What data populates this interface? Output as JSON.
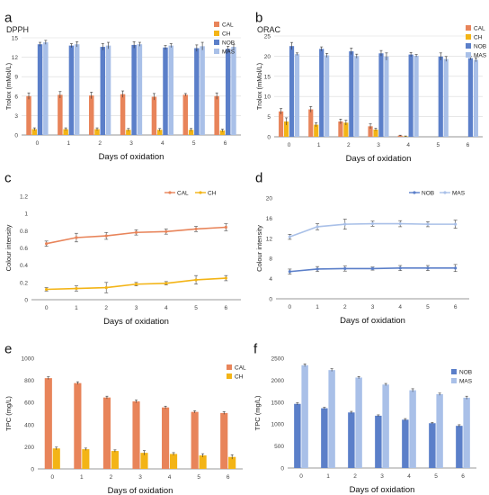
{
  "colors": {
    "CAL": "#e8845a",
    "CH": "#f3b416",
    "NOB": "#5b7fc9",
    "MAS": "#a9c0e8",
    "axis": "#444444",
    "grid": "#d9d9d9"
  },
  "chart_data": [
    {
      "panel": "a",
      "type": "bar",
      "title": "DPPH",
      "xlabel": "Days of oxidation",
      "ylabel": "Trolox (mMol/L)",
      "categories": [
        "0",
        "1",
        "2",
        "3",
        "4",
        "5",
        "6"
      ],
      "yticks": [
        "0",
        "3",
        "6",
        "9",
        "12",
        "15"
      ],
      "ylim": [
        0,
        15
      ],
      "grid": true,
      "legend": "right",
      "series": [
        {
          "name": "CAL",
          "values": [
            6.0,
            6.2,
            6.1,
            6.3,
            5.9,
            6.2,
            6.0
          ],
          "errors": [
            0.5,
            0.5,
            0.5,
            0.5,
            0.5,
            0.2,
            0.5
          ]
        },
        {
          "name": "CH",
          "values": [
            0.9,
            0.9,
            0.9,
            0.8,
            0.8,
            0.8,
            0.7
          ],
          "errors": [
            0.2,
            0.2,
            0.2,
            0.2,
            0.2,
            0.2,
            0.2
          ]
        },
        {
          "name": "NOB",
          "values": [
            14.0,
            13.8,
            13.6,
            13.9,
            13.5,
            13.4,
            13.3
          ],
          "errors": [
            0.3,
            0.3,
            0.5,
            0.5,
            0.3,
            0.5,
            0.4
          ]
        },
        {
          "name": "MAS",
          "values": [
            14.3,
            14.0,
            13.8,
            14.0,
            13.8,
            13.7,
            13.6
          ],
          "errors": [
            0.3,
            0.4,
            0.5,
            0.3,
            0.3,
            0.6,
            0.4
          ]
        }
      ]
    },
    {
      "panel": "b",
      "type": "bar",
      "title": "ORAC",
      "xlabel": "Days of oxidation",
      "ylabel": "Trolox (mMol/L)",
      "categories": [
        "0",
        "1",
        "2",
        "3",
        "4",
        "5",
        "6"
      ],
      "yticks": [
        "0",
        "5",
        "10",
        "15",
        "20",
        "25"
      ],
      "ylim": [
        0,
        25
      ],
      "grid": true,
      "legend": "right",
      "series": [
        {
          "name": "CAL",
          "values": [
            6.3,
            6.8,
            3.8,
            2.6,
            0.3,
            0.0,
            0.0
          ],
          "errors": [
            0.7,
            0.7,
            0.6,
            0.6,
            0.1,
            0,
            0
          ]
        },
        {
          "name": "CH",
          "values": [
            3.8,
            3.0,
            3.5,
            1.8,
            0.1,
            0.0,
            0.0
          ],
          "errors": [
            0.9,
            0.5,
            0.6,
            0.3,
            0.1,
            0,
            0
          ]
        },
        {
          "name": "NOB",
          "values": [
            22.5,
            21.8,
            21.2,
            20.7,
            20.4,
            19.9,
            19.5
          ],
          "errors": [
            0.9,
            0.5,
            0.8,
            0.7,
            0.5,
            0.9,
            0.4
          ]
        },
        {
          "name": "MAS",
          "values": [
            20.5,
            20.2,
            20.0,
            19.9,
            20.1,
            19.3,
            19.1
          ],
          "errors": [
            0.3,
            0.5,
            0.5,
            0.9,
            0.3,
            0.6,
            0.5
          ]
        }
      ]
    },
    {
      "panel": "c",
      "type": "line",
      "xlabel": "Days of oxidation",
      "ylabel": "Colour intensity",
      "x": [
        "0",
        "1",
        "2",
        "3",
        "4",
        "5",
        "6"
      ],
      "yticks": [
        "0",
        "0.2",
        "0.4",
        "0.6",
        "0.8",
        "1",
        "1.2"
      ],
      "ylim": [
        0,
        1.2
      ],
      "grid": false,
      "legend": "top-right",
      "series": [
        {
          "name": "CAL",
          "values": [
            0.65,
            0.72,
            0.74,
            0.78,
            0.79,
            0.82,
            0.84
          ],
          "errors": [
            0.03,
            0.05,
            0.04,
            0.03,
            0.03,
            0.03,
            0.04
          ]
        },
        {
          "name": "CH",
          "values": [
            0.12,
            0.13,
            0.14,
            0.18,
            0.19,
            0.23,
            0.25
          ],
          "errors": [
            0.02,
            0.03,
            0.06,
            0.02,
            0.02,
            0.05,
            0.03
          ]
        }
      ]
    },
    {
      "panel": "d",
      "type": "line",
      "xlabel": "Days of oxidation",
      "ylabel": "Colour intensity",
      "x": [
        "0",
        "1",
        "2",
        "3",
        "4",
        "5",
        "6"
      ],
      "yticks": [
        "0",
        "4",
        "8",
        "12",
        "16",
        "20"
      ],
      "ylim": [
        0,
        20
      ],
      "grid": false,
      "legend": "top-right",
      "series": [
        {
          "name": "NOB",
          "values": [
            5.4,
            5.9,
            6.0,
            6.0,
            6.1,
            6.1,
            6.1
          ],
          "errors": [
            0.5,
            0.5,
            0.5,
            0.3,
            0.5,
            0.5,
            0.7
          ]
        },
        {
          "name": "MAS",
          "values": [
            12.3,
            14.3,
            14.8,
            14.9,
            14.9,
            14.8,
            14.8
          ],
          "errors": [
            0.5,
            0.6,
            1.0,
            0.5,
            0.6,
            0.5,
            0.8
          ]
        }
      ]
    },
    {
      "panel": "e",
      "type": "bar",
      "xlabel": "Days of oxidation",
      "ylabel": "TPC (mg/L)",
      "categories": [
        "0",
        "1",
        "2",
        "3",
        "4",
        "5",
        "6"
      ],
      "yticks": [
        "0",
        "200",
        "400",
        "600",
        "800",
        "1000"
      ],
      "ylim": [
        0,
        1000
      ],
      "grid": false,
      "legend": "top-right",
      "series": [
        {
          "name": "CAL",
          "values": [
            820,
            775,
            645,
            610,
            555,
            515,
            505
          ],
          "errors": [
            12,
            12,
            12,
            12,
            12,
            10,
            12
          ]
        },
        {
          "name": "CH",
          "values": [
            185,
            178,
            162,
            145,
            135,
            122,
            108
          ],
          "errors": [
            12,
            10,
            10,
            20,
            12,
            15,
            20
          ]
        }
      ]
    },
    {
      "panel": "f",
      "type": "bar",
      "xlabel": "Days of oxidation",
      "ylabel": "TPC (mg/L)",
      "categories": [
        "0",
        "1",
        "2",
        "3",
        "4",
        "5",
        "6"
      ],
      "yticks": [
        "0",
        "500",
        "1000",
        "1500",
        "2000",
        "2500"
      ],
      "ylim": [
        0,
        2500
      ],
      "grid": false,
      "legend": "top-right",
      "series": [
        {
          "name": "NOB",
          "values": [
            1460,
            1360,
            1265,
            1190,
            1100,
            1020,
            960
          ],
          "errors": [
            25,
            20,
            25,
            20,
            25,
            15,
            25
          ]
        },
        {
          "name": "MAS",
          "values": [
            2340,
            2230,
            2060,
            1900,
            1770,
            1680,
            1600
          ],
          "errors": [
            30,
            30,
            25,
            25,
            35,
            25,
            35
          ]
        }
      ]
    }
  ]
}
